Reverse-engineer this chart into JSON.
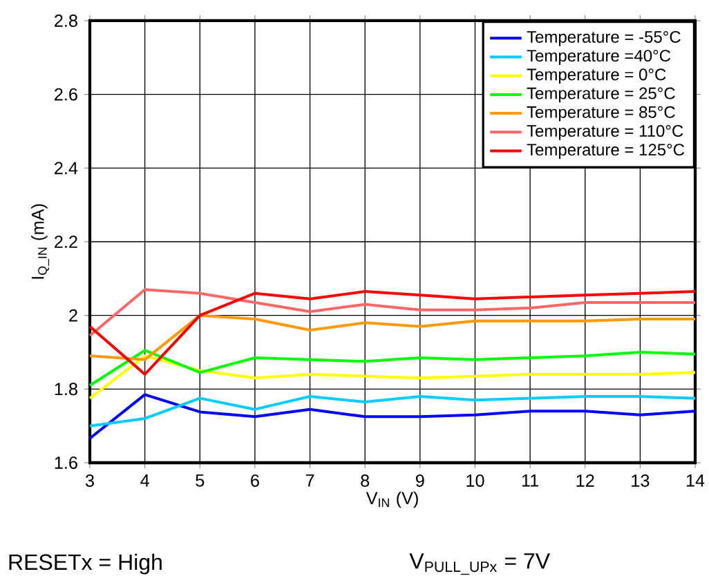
{
  "chart_data": {
    "type": "line",
    "xlabel": "V$_{IN}$ (V)",
    "ylabel": "I$_{Q_IN}$ (mA)",
    "x": [
      3,
      4,
      5,
      6,
      7,
      8,
      9,
      10,
      11,
      12,
      13,
      14
    ],
    "series": [
      {
        "name": "Temperature = -55°C",
        "color": "#0000ff",
        "values": [
          1.666,
          1.785,
          1.738,
          1.725,
          1.745,
          1.725,
          1.725,
          1.73,
          1.74,
          1.74,
          1.73,
          1.74
        ]
      },
      {
        "name": "Temperature =40°C",
        "color": "#00ccff",
        "values": [
          1.7,
          1.72,
          1.775,
          1.745,
          1.78,
          1.765,
          1.78,
          1.77,
          1.775,
          1.78,
          1.78,
          1.775
        ]
      },
      {
        "name": "Temperature = 0°C",
        "color": "#ffff00",
        "values": [
          1.775,
          1.89,
          1.85,
          1.83,
          1.84,
          1.835,
          1.83,
          1.835,
          1.84,
          1.84,
          1.84,
          1.845
        ]
      },
      {
        "name": "Temperature = 25°C",
        "color": "#00ff00",
        "values": [
          1.81,
          1.905,
          1.845,
          1.885,
          1.88,
          1.875,
          1.885,
          1.88,
          1.885,
          1.89,
          1.9,
          1.895
        ]
      },
      {
        "name": "Temperature = 85°C",
        "color": "#ff9900",
        "values": [
          1.89,
          1.88,
          2.0,
          1.99,
          1.96,
          1.98,
          1.97,
          1.985,
          1.985,
          1.985,
          1.99,
          1.99
        ]
      },
      {
        "name": "Temperature = 110°C",
        "color": "#ff6666",
        "values": [
          1.945,
          2.07,
          2.06,
          2.035,
          2.01,
          2.03,
          2.015,
          2.015,
          2.02,
          2.035,
          2.035,
          2.035
        ]
      },
      {
        "name": "Temperature = 125°C",
        "color": "#ff0000",
        "values": [
          1.97,
          1.84,
          2.0,
          2.06,
          2.045,
          2.065,
          2.055,
          2.045,
          2.05,
          2.055,
          2.06,
          2.065
        ]
      }
    ],
    "xlim": [
      3,
      14
    ],
    "ylim": [
      1.6,
      2.8
    ],
    "xticks": [
      3,
      4,
      5,
      6,
      7,
      8,
      9,
      10,
      11,
      12,
      13,
      14
    ],
    "yticks": [
      1.6,
      1.8,
      2,
      2.2,
      2.4,
      2.6,
      2.8
    ],
    "grid": true,
    "legend": "top right",
    "line_style": "solid",
    "annotations": [
      "RESETx = High",
      "V$_{PULL_UPx}$ = 7V"
    ]
  }
}
